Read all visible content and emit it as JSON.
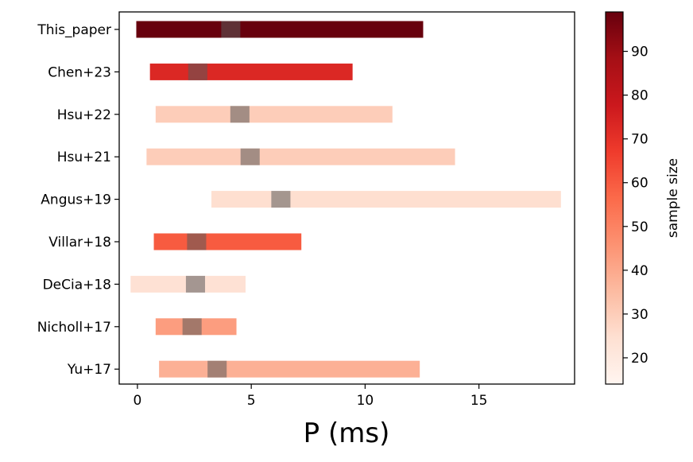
{
  "chart_data": {
    "type": "bar",
    "orientation": "horizontal-range",
    "title": "",
    "xlabel": "P (ms)",
    "ylabel": "",
    "xlim": [
      -0.8,
      19.2
    ],
    "x_ticks": [
      0,
      5,
      10,
      15
    ],
    "categories": [
      "This_paper",
      "Chen+23",
      "Hsu+22",
      "Hsu+21",
      "Angus+19",
      "Villar+18",
      "DeCia+18",
      "Nicholl+17",
      "Yu+17"
    ],
    "ranges": [
      {
        "study": "This_paper",
        "low": -0.05,
        "high": 12.55,
        "center": 4.1,
        "center_halfwidth": 0.42,
        "sample_size": 99
      },
      {
        "study": "Chen+23",
        "low": 0.55,
        "high": 9.45,
        "center": 2.65,
        "center_halfwidth": 0.42,
        "sample_size": 73
      },
      {
        "study": "Hsu+22",
        "low": 0.8,
        "high": 11.2,
        "center": 4.5,
        "center_halfwidth": 0.42,
        "sample_size": 30
      },
      {
        "study": "Hsu+21",
        "low": 0.4,
        "high": 13.95,
        "center": 4.95,
        "center_halfwidth": 0.42,
        "sample_size": 30
      },
      {
        "study": "Angus+19",
        "low": 3.25,
        "high": 18.6,
        "center": 6.3,
        "center_halfwidth": 0.42,
        "sample_size": 25
      },
      {
        "study": "Villar+18",
        "low": 0.72,
        "high": 7.2,
        "center": 2.6,
        "center_halfwidth": 0.42,
        "sample_size": 60
      },
      {
        "study": "DeCia+18",
        "low": -0.3,
        "high": 4.75,
        "center": 2.55,
        "center_halfwidth": 0.42,
        "sample_size": 24
      },
      {
        "study": "Nicholl+17",
        "low": 0.8,
        "high": 4.35,
        "center": 2.4,
        "center_halfwidth": 0.42,
        "sample_size": 43
      },
      {
        "study": "Yu+17",
        "low": 0.95,
        "high": 12.4,
        "center": 3.5,
        "center_halfwidth": 0.42,
        "sample_size": 38
      }
    ],
    "colorbar": {
      "label": "sample size",
      "min": 14,
      "max": 99,
      "ticks": [
        20,
        30,
        40,
        50,
        60,
        70,
        80,
        90
      ],
      "colormap": "Reds",
      "colormap_stops": [
        "#fff5f0",
        "#fee0d2",
        "#fcbba1",
        "#fc9272",
        "#fb6a4a",
        "#ef3b2c",
        "#cb181d",
        "#a50f15",
        "#67000d"
      ]
    },
    "center_overlay_color": "#5a5a5a",
    "center_overlay_opacity": 0.55,
    "grid": false,
    "legend": "colorbar-right"
  }
}
